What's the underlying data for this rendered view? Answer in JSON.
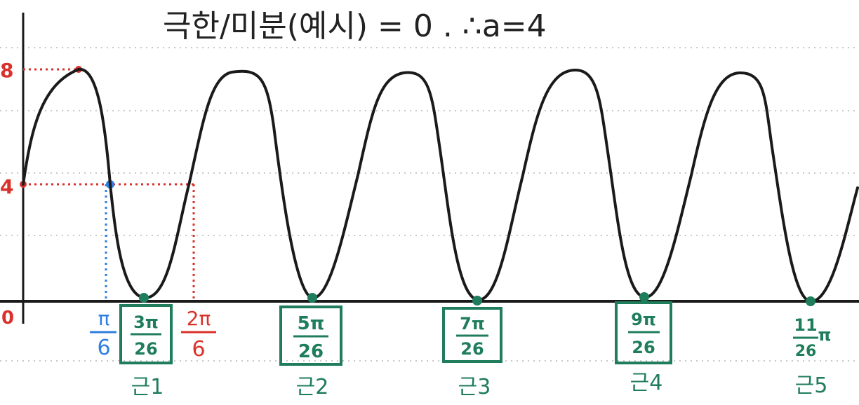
{
  "header": {
    "title": "극한/미분(예시) = 0 . ∴a=4"
  },
  "axes": {
    "origin_label": "0",
    "y_marks": [
      {
        "label": "8",
        "value": 8
      },
      {
        "label": "4",
        "value": 4
      }
    ]
  },
  "guides": {
    "blue": {
      "numerator": "π",
      "denominator": "6"
    },
    "red": {
      "numerator": "2π",
      "denominator": "6"
    }
  },
  "roots": [
    {
      "numerator": "3π",
      "denominator": "26",
      "caption": "근1",
      "boxed": true
    },
    {
      "numerator": "5π",
      "denominator": "26",
      "caption": "근2",
      "boxed": true
    },
    {
      "numerator": "7π",
      "denominator": "26",
      "caption": "근3",
      "boxed": true
    },
    {
      "numerator": "9π",
      "denominator": "26",
      "caption": "근4",
      "boxed": true
    },
    {
      "numerator": "11",
      "denominator": "26",
      "suffix": "π",
      "caption": "근5",
      "boxed": false
    }
  ],
  "colors": {
    "curve": "#1a1a1a",
    "red": "#d9312b",
    "blue": "#2f7fe0",
    "green": "#1f7d5c",
    "grid": "#c9c9c9"
  }
}
